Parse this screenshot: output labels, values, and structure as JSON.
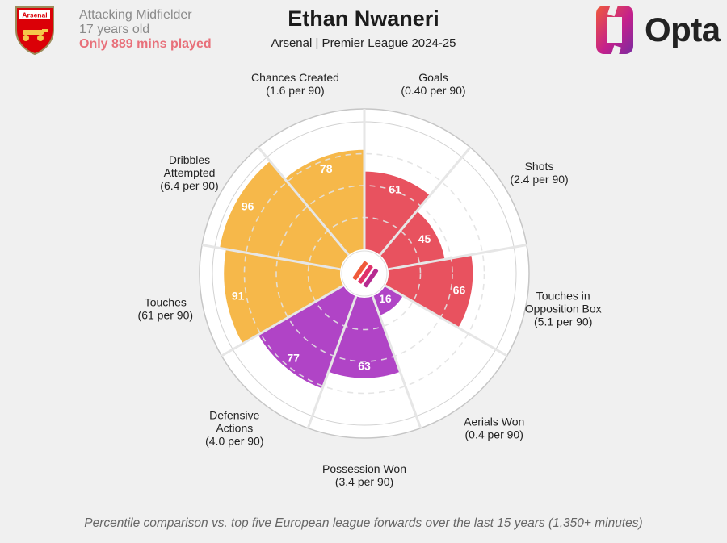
{
  "header": {
    "club": "Arsenal",
    "position": "Attacking Midfielder",
    "age": "17 years old",
    "minutes_note": "Only 889 mins played",
    "title": "Ethan Nwaneri",
    "subtitle": "Arsenal | Premier League 2024-25",
    "brand": "Opta"
  },
  "footnote": "Percentile comparison vs. top five European league forwards over the last 15 years (1,350+ minutes)",
  "colors": {
    "attack": "#e8525f",
    "possession": "#b044c6",
    "creation": "#f6b84a",
    "background": "#f0f0f0",
    "opta_gradient": [
      "#f05a3a",
      "#c4208c",
      "#7a2ba0"
    ]
  },
  "chart_data": {
    "type": "radial-bar",
    "scale": [
      0,
      100
    ],
    "grid": true,
    "series": [
      {
        "name": "Goals",
        "rate": "(0.40 per 90)",
        "value": 61,
        "group": "attack",
        "label_lines": [
          "Goals"
        ]
      },
      {
        "name": "Shots",
        "rate": "(2.4 per 90)",
        "value": 45,
        "group": "attack",
        "label_lines": [
          "Shots"
        ]
      },
      {
        "name": "Touches in Opposition Box",
        "rate": "(5.1 per 90)",
        "value": 66,
        "group": "attack",
        "label_lines": [
          "Touches in",
          "Opposition Box"
        ]
      },
      {
        "name": "Aerials Won",
        "rate": "(0.4 per 90)",
        "value": 16,
        "group": "possession",
        "label_lines": [
          "Aerials Won"
        ]
      },
      {
        "name": "Possession Won",
        "rate": "(3.4 per 90)",
        "value": 63,
        "group": "possession",
        "label_lines": [
          "Possession Won"
        ]
      },
      {
        "name": "Defensive Actions",
        "rate": "(4.0 per 90)",
        "value": 77,
        "group": "possession",
        "label_lines": [
          "Defensive",
          "Actions"
        ]
      },
      {
        "name": "Touches",
        "rate": "(61 per 90)",
        "value": 91,
        "group": "creation",
        "label_lines": [
          "Touches"
        ]
      },
      {
        "name": "Dribbles Attempted",
        "rate": "(6.4 per 90)",
        "value": 96,
        "group": "creation",
        "label_lines": [
          "Dribbles",
          "Attempted"
        ]
      },
      {
        "name": "Chances Created",
        "rate": "(1.6 per 90)",
        "value": 78,
        "group": "creation",
        "label_lines": [
          "Chances Created"
        ]
      }
    ]
  }
}
